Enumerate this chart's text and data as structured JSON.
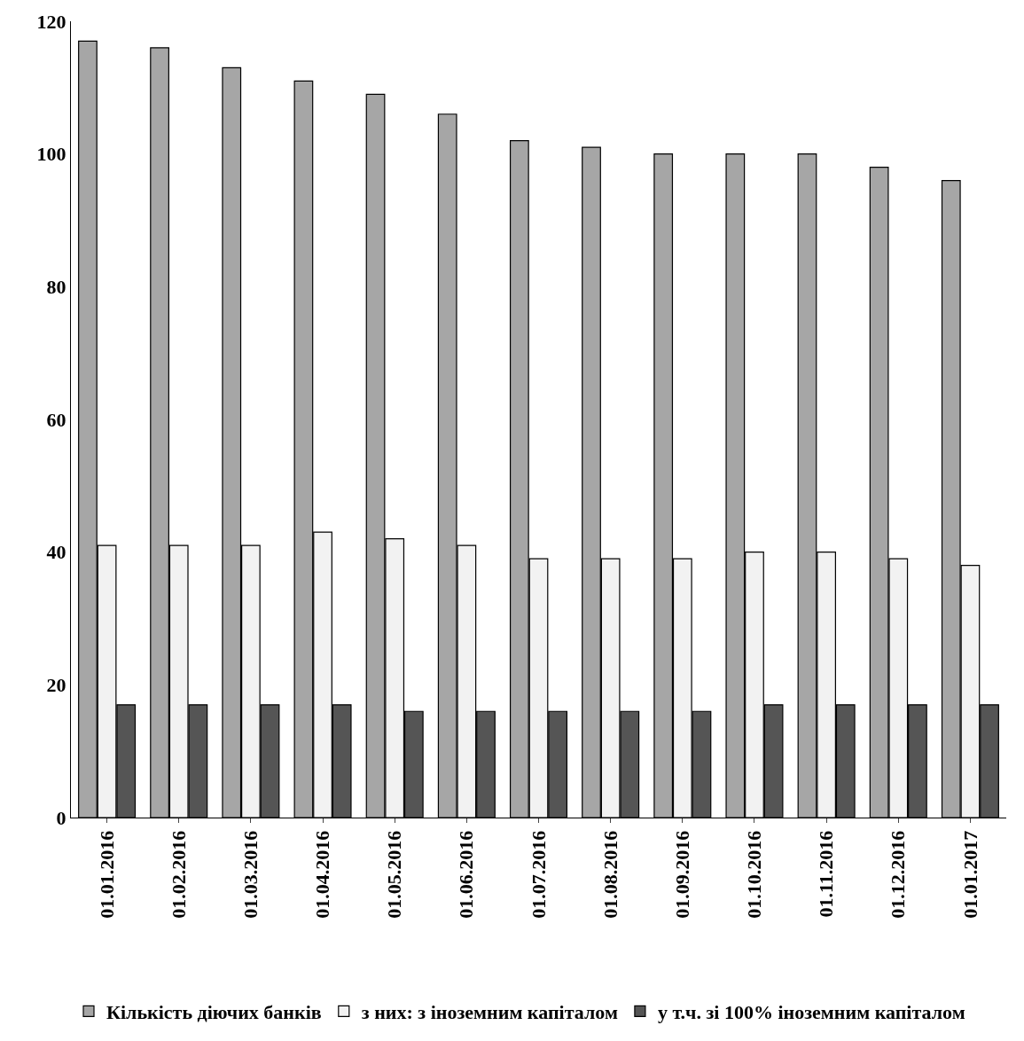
{
  "chart_data": {
    "type": "bar",
    "categories": [
      "01.01.2016",
      "01.02.2016",
      "01.03.2016",
      "01.04.2016",
      "01.05.2016",
      "01.06.2016",
      "01.07.2016",
      "01.08.2016",
      "01.09.2016",
      "01.10.2016",
      "01.11.2016",
      "01.12.2016",
      "01.01.2017"
    ],
    "series": [
      {
        "name": "Кількість діючих банків",
        "color": "#a6a6a6",
        "values": [
          117,
          116,
          113,
          111,
          109,
          106,
          102,
          101,
          100,
          100,
          100,
          98,
          96
        ]
      },
      {
        "name": "з них: з іноземним капіталом",
        "color": "#f2f2f2",
        "values": [
          41,
          41,
          41,
          43,
          42,
          41,
          39,
          39,
          39,
          40,
          40,
          39,
          38
        ]
      },
      {
        "name": "у т.ч. зі 100% іноземним капіталом",
        "color": "#555555",
        "values": [
          17,
          17,
          17,
          17,
          16,
          16,
          16,
          16,
          16,
          17,
          17,
          17,
          17
        ]
      }
    ],
    "ylim": [
      0,
      120
    ],
    "yticks": [
      0,
      20,
      40,
      60,
      80,
      100,
      120
    ],
    "legend": "bottom"
  }
}
